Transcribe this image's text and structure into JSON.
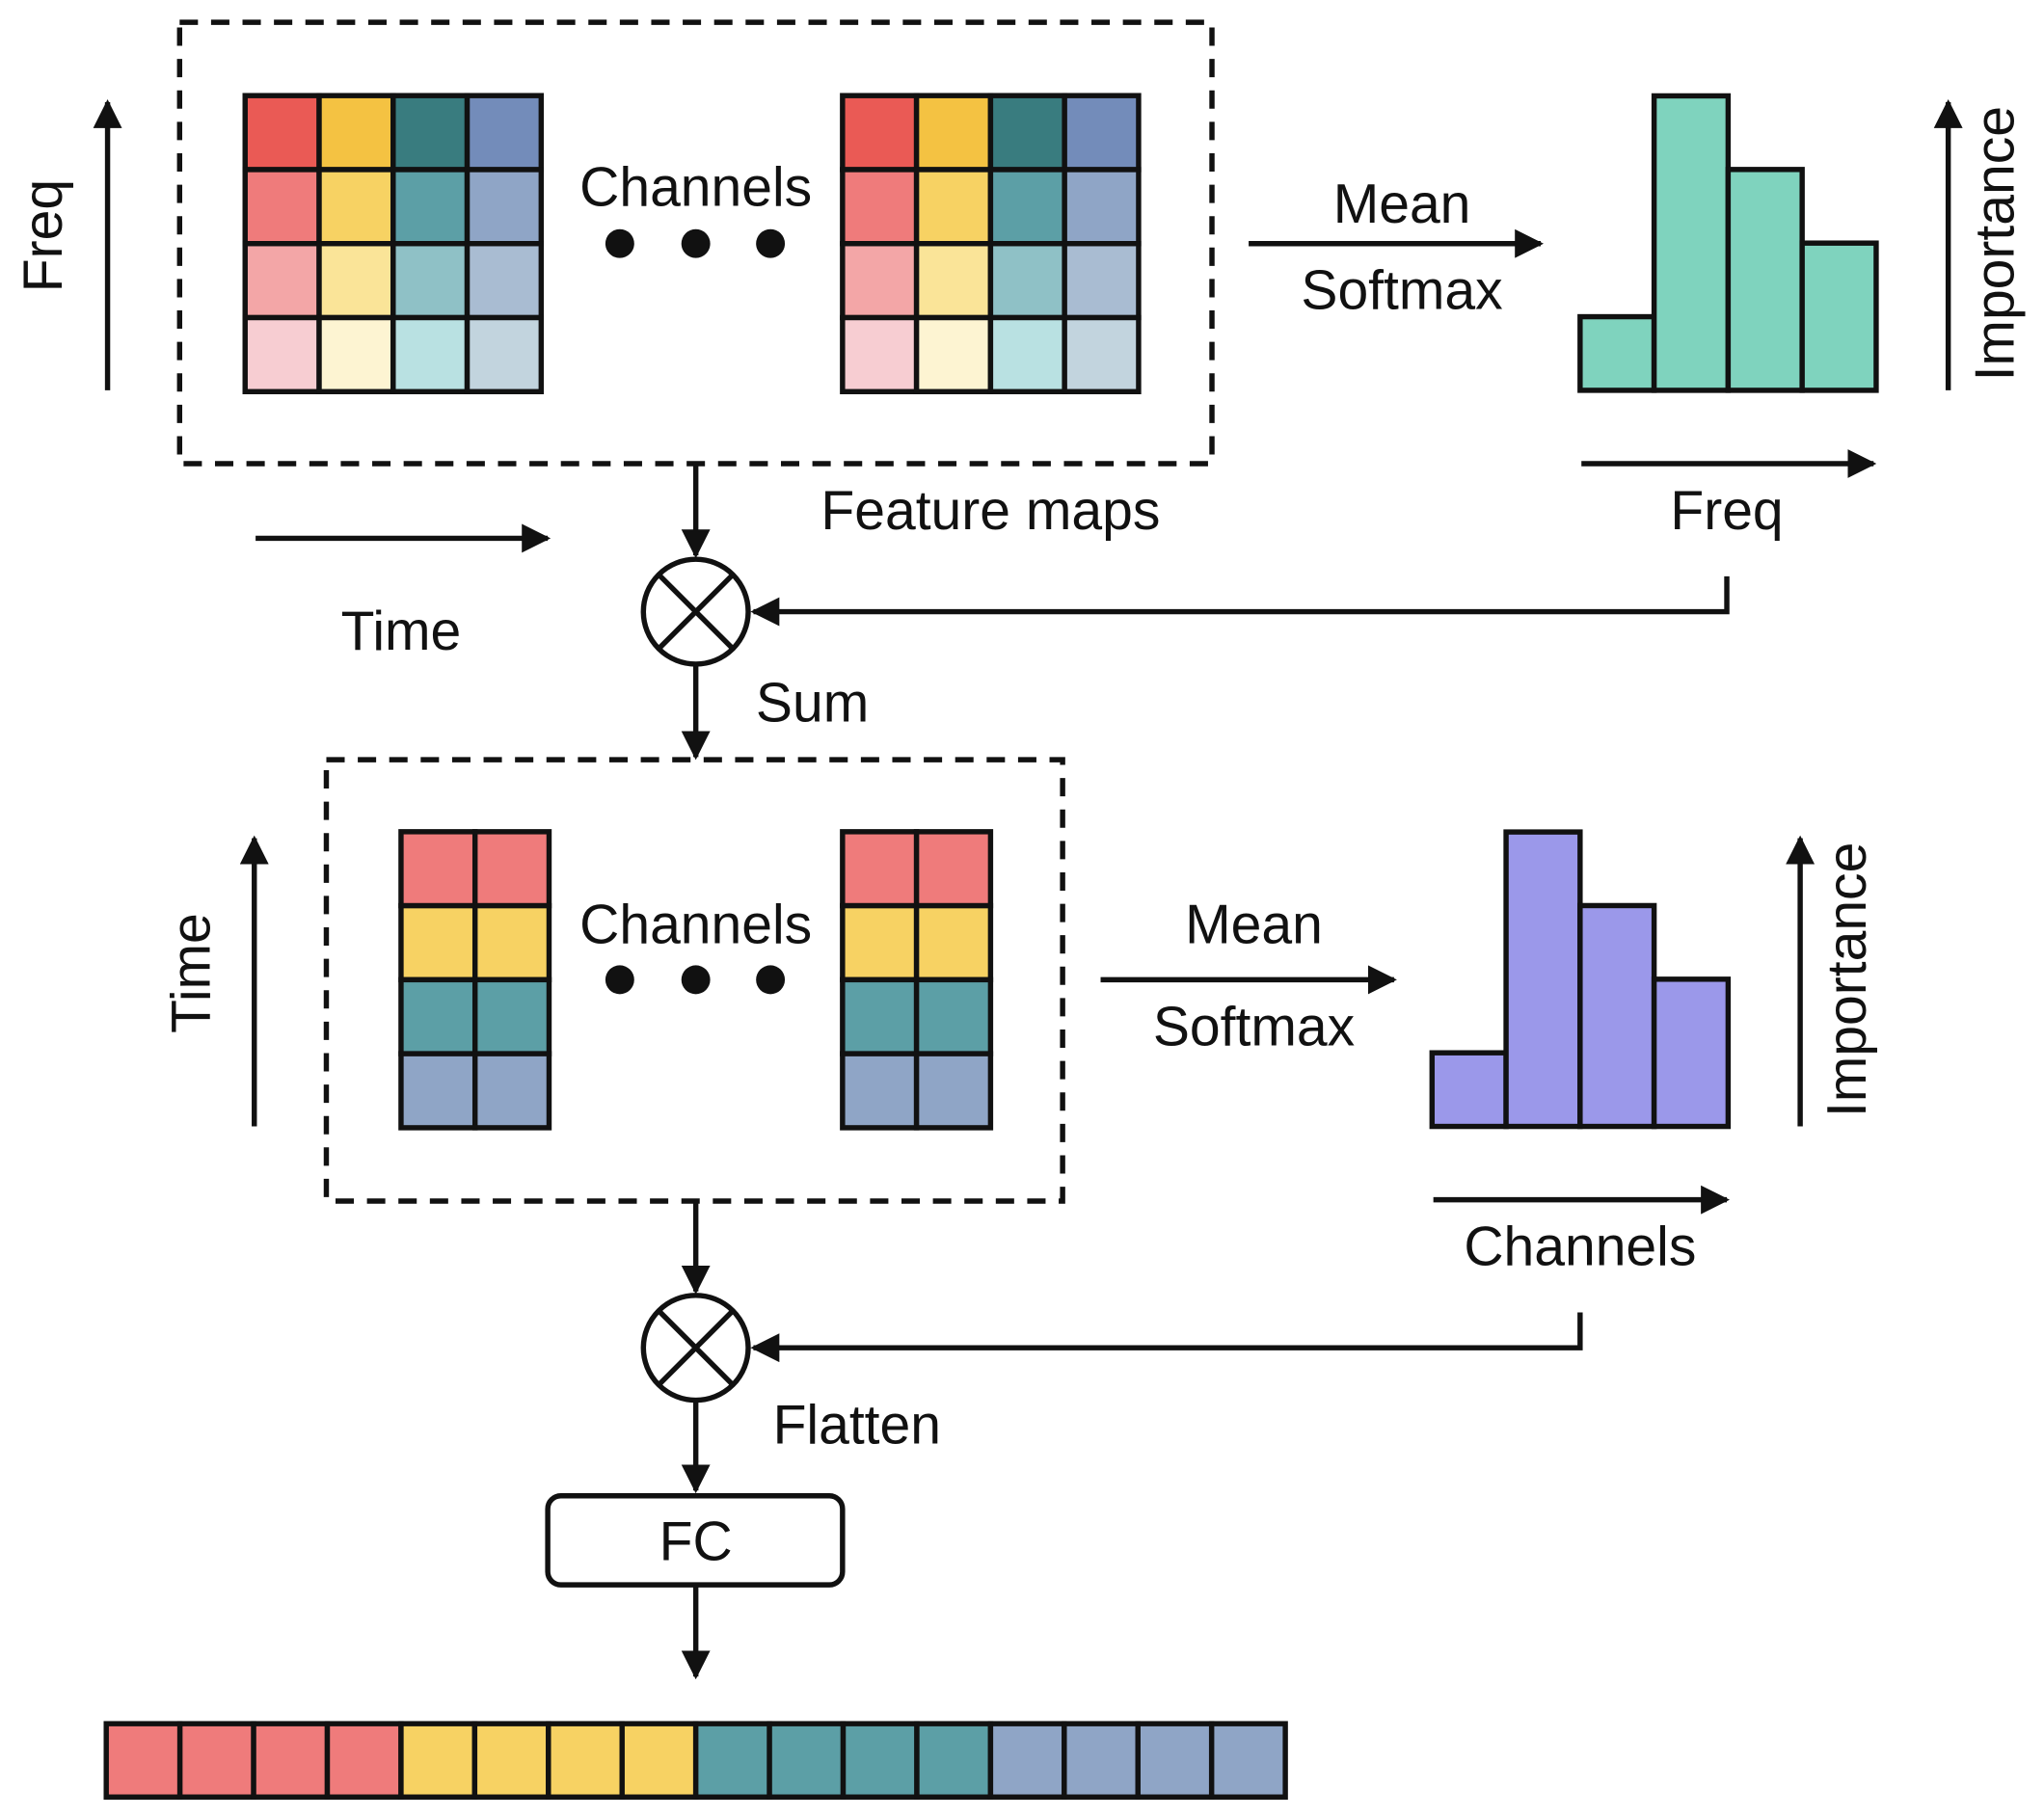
{
  "labels": {
    "freq_axis": "Freq",
    "time_axis_top": "Time",
    "channels_top": "Channels",
    "feature_maps": "Feature maps",
    "mean_top": "Mean",
    "softmax_top": "Softmax",
    "importance_top": "Importance",
    "freq_hist_axis": "Freq",
    "sum": "Sum",
    "time_axis_bottom": "Time",
    "channels_mid": "Channels",
    "mean_bottom": "Mean",
    "softmax_bottom": "Softmax",
    "importance_bottom": "Importance",
    "channels_hist_axis": "Channels",
    "flatten": "Flatten",
    "fc": "FC"
  },
  "colors": {
    "stroke": "#111111",
    "freq_hist": "#7fd3be",
    "channel_hist": "#9b98ea",
    "grid_rows": [
      [
        "#ea5a55",
        "#f4c242",
        "#397c7f",
        "#738cba"
      ],
      [
        "#ef7b7b",
        "#f7d263",
        "#5c9fa6",
        "#8fa5c6"
      ],
      [
        "#f3a6a7",
        "#fae498",
        "#8fc1c6",
        "#a9bcd2"
      ],
      [
        "#f7cdd2",
        "#fdf4d2",
        "#b9e1e2",
        "#c2d4de"
      ]
    ],
    "mid_rows": [
      "#ef7b7b",
      "#f7d263",
      "#5c9fa6",
      "#8fa5c6"
    ],
    "vector": [
      "#ef7b7b",
      "#ef7b7b",
      "#ef7b7b",
      "#ef7b7b",
      "#f7d263",
      "#f7d263",
      "#f7d263",
      "#f7d263",
      "#5c9fa6",
      "#5c9fa6",
      "#5c9fa6",
      "#5c9fa6",
      "#8fa5c6",
      "#8fa5c6",
      "#8fa5c6",
      "#8fa5c6"
    ]
  },
  "freq_importance": [
    1,
    4,
    3,
    2
  ],
  "channel_importance": [
    1,
    4,
    3,
    2
  ]
}
